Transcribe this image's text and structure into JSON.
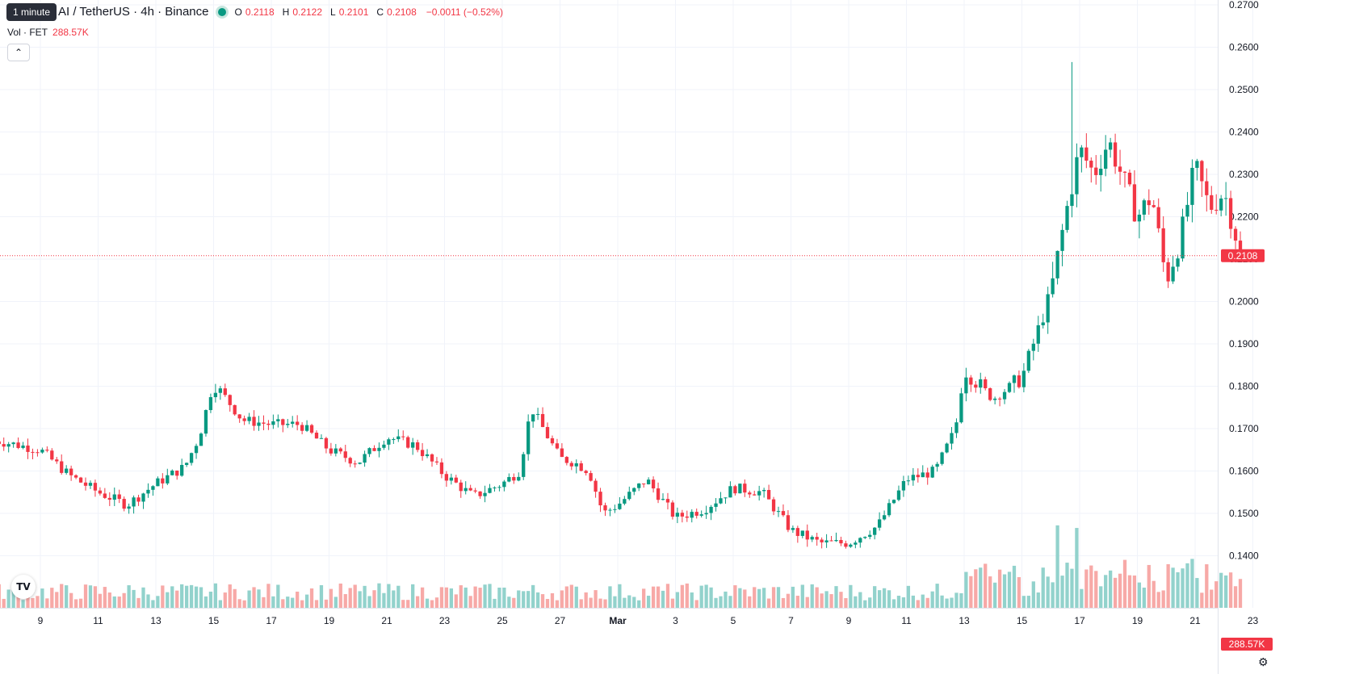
{
  "header": {
    "title": "AI / TetherUS · 4h · Binance",
    "tooltip": "1 minute",
    "ohlc": {
      "o_label": "O",
      "o": "0.2118",
      "h_label": "H",
      "h": "0.2122",
      "l_label": "L",
      "l": "0.2101",
      "c_label": "C",
      "c": "0.2108",
      "change": "−0.0011 (−0.52%)"
    },
    "volume_label": "Vol · FET",
    "volume_value": "288.57K",
    "collapse_icon": "chevron-up-icon",
    "logo": "tradingview-logo",
    "settings_icon": "gear-icon"
  },
  "colors": {
    "up": "#089981",
    "down": "#f23645",
    "vol_up": "#92d2cc",
    "vol_down": "#f7a9a7",
    "grid": "#f0f3fa"
  },
  "chart_data": {
    "type": "candlestick",
    "symbol": "AI / TetherUS",
    "interval": "4h",
    "exchange": "Binance",
    "price_axis": {
      "ylim": [
        0.1355,
        0.2705
      ],
      "ticks": [
        "0.1400",
        "0.1500",
        "0.1600",
        "0.1700",
        "0.1800",
        "0.1900",
        "0.2000",
        "0.2100",
        "0.2200",
        "0.2300",
        "0.2400",
        "0.2500",
        "0.2600",
        "0.2700"
      ]
    },
    "time_axis": {
      "labels": [
        "9",
        "11",
        "13",
        "15",
        "17",
        "19",
        "21",
        "23",
        "25",
        "27",
        "Mar",
        "3",
        "5",
        "7",
        "9",
        "11",
        "13",
        "15",
        "17",
        "19",
        "21",
        "23"
      ],
      "label_days": [
        9,
        11,
        13,
        15,
        17,
        19,
        21,
        23,
        25,
        27,
        29,
        31,
        33,
        35,
        37,
        39,
        41,
        43,
        45,
        47,
        49,
        51
      ]
    },
    "last_price": "0.2108",
    "last_volume": "288.57K",
    "volume_scale_max": 1,
    "daily_closes": {
      "days": [
        7.6,
        9,
        10,
        11,
        12,
        13,
        14,
        14.5,
        15,
        16,
        17,
        18,
        19,
        20,
        21,
        22,
        23,
        24,
        25,
        25.6,
        26,
        27,
        27.5,
        28,
        28.5,
        29,
        30,
        31,
        32,
        33,
        34,
        35,
        36,
        37,
        38,
        39,
        40,
        40.7,
        41,
        42,
        43,
        44,
        44.5,
        45,
        45.5,
        46,
        47,
        47.5,
        48,
        48.5,
        49,
        49.5,
        50,
        50.6
      ],
      "closes": [
        0.167,
        0.165,
        0.159,
        0.155,
        0.152,
        0.157,
        0.161,
        0.168,
        0.181,
        0.172,
        0.171,
        0.171,
        0.165,
        0.162,
        0.168,
        0.166,
        0.159,
        0.154,
        0.157,
        0.16,
        0.175,
        0.163,
        0.162,
        0.16,
        0.15,
        0.152,
        0.158,
        0.149,
        0.151,
        0.156,
        0.155,
        0.146,
        0.143,
        0.143,
        0.147,
        0.158,
        0.16,
        0.17,
        0.184,
        0.177,
        0.182,
        0.202,
        0.22,
        0.236,
        0.23,
        0.238,
        0.22,
        0.225,
        0.205,
        0.215,
        0.232,
        0.222,
        0.226,
        0.2108
      ]
    },
    "highlights": {
      "max_wick_high": 0.2565,
      "min_wick_low": 0.14
    }
  }
}
